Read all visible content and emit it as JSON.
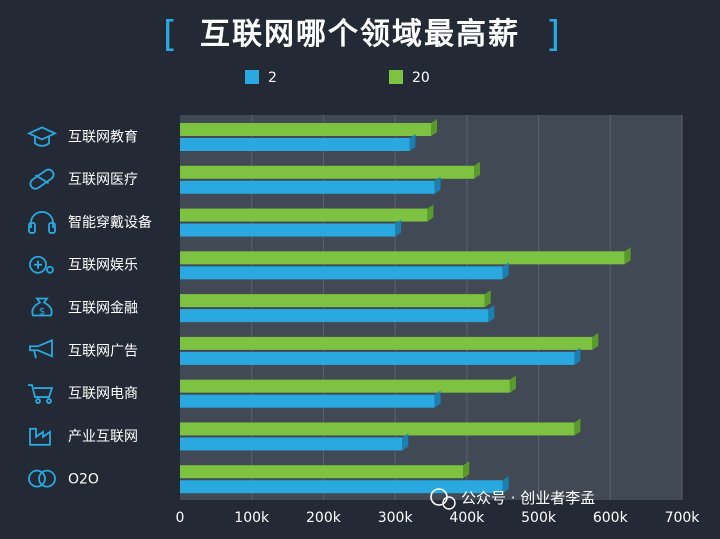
{
  "colors": {
    "background": "#232a35",
    "plot_background": "#414955",
    "series_blue": "#2aa8e0",
    "series_green": "#7dc241",
    "icon_color": "#2aa8e0"
  },
  "icons": [
    "graduation-cap-icon",
    "pill-icon",
    "headphones-icon",
    "gamepad-icon",
    "money-bag-icon",
    "megaphone-icon",
    "shopping-cart-icon",
    "factory-icon",
    "linked-rings-icon"
  ],
  "watermark": "公众号 · 创业者李孟",
  "chart_data": {
    "type": "bar",
    "orientation": "horizontal",
    "title": "互联网哪个领域最高薪",
    "categories": [
      "互联网教育",
      "互联网医疗",
      "智能穿戴设备",
      "互联网娱乐",
      "互联网金融",
      "互联网广告",
      "互联网电商",
      "产业互联网",
      "O2O"
    ],
    "series": [
      {
        "name": "2",
        "values": [
          320,
          355,
          300,
          450,
          430,
          550,
          355,
          310,
          450
        ]
      },
      {
        "name": "20",
        "values": [
          350,
          410,
          345,
          620,
          425,
          575,
          460,
          550,
          395
        ]
      }
    ],
    "xlim": [
      0,
      700
    ],
    "xticks": [
      0,
      100,
      200,
      300,
      400,
      500,
      600,
      700
    ],
    "xtick_labels": [
      "0",
      "100k",
      "200k",
      "300k",
      "400k",
      "500k",
      "600k",
      "700k"
    ],
    "grid": true,
    "legend_position": "top"
  }
}
